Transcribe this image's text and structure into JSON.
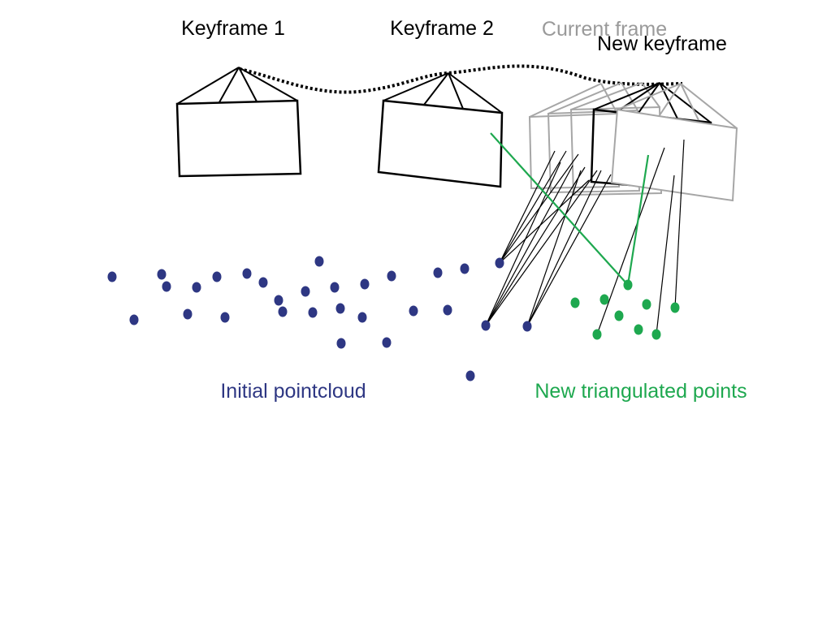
{
  "labels": {
    "keyframe1": "Keyframe 1",
    "keyframe2": "Keyframe 2",
    "current_frame": "Current frame",
    "new_keyframe": "New keyframe",
    "initial_pointcloud": "Initial pointcloud",
    "new_triangulated_points": "New triangulated points"
  },
  "colors": {
    "keyframe_outline": "#000000",
    "current_frame_outline": "#a6a6a6",
    "initial_points": "#2e3783",
    "new_points": "#1ea84f",
    "trajectory": "#000000",
    "observation_ray": "#000000",
    "triangulation_ray": "#1ea84f"
  }
}
